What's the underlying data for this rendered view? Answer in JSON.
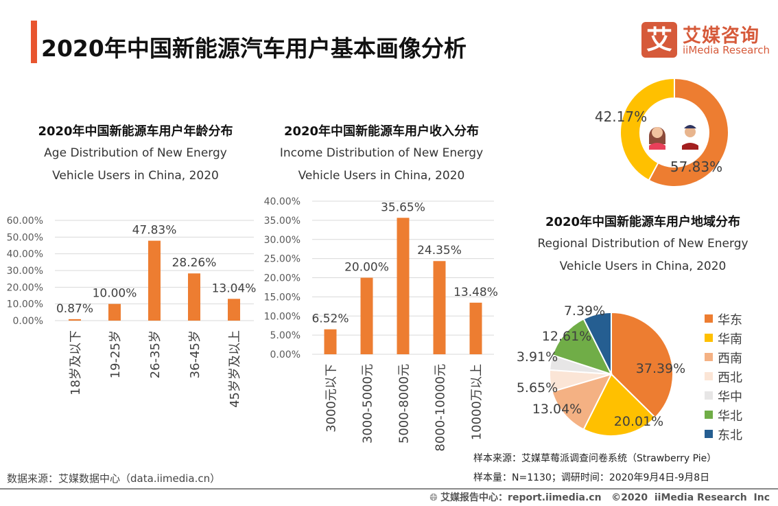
{
  "header": {
    "title": "2020年中国新能源汽车用户基本画像分析"
  },
  "logo": {
    "icon_char": "艾",
    "cn": "艾媒咨询",
    "en": "iiMedia Research"
  },
  "colors": {
    "accent": "#e8552f",
    "bar": "#ed7d31",
    "grid": "#d9d9d9"
  },
  "chart_data": [
    {
      "type": "bar",
      "title": "2020年中国新能源车用户年龄分布",
      "subtitle_lines": [
        "Age Distribution of New Energy",
        "Vehicle Users in China, 2020"
      ],
      "categories": [
        "18岁及以下",
        "19-25岁",
        "26-35岁",
        "36-45岁",
        "45岁岁及以上"
      ],
      "values": [
        0.87,
        10.0,
        47.83,
        28.26,
        13.04
      ],
      "data_labels": [
        "0.87%",
        "10.00%",
        "47.83%",
        "28.26%",
        "13.04%"
      ],
      "yticks": [
        "0.00%",
        "10.00%",
        "20.00%",
        "30.00%",
        "40.00%",
        "50.00%",
        "60.00%"
      ],
      "ylim": [
        0,
        60
      ],
      "grid": true,
      "color": "#ed7d31"
    },
    {
      "type": "bar",
      "title": "2020年中国新能源车用户收入分布",
      "subtitle_lines": [
        "Income Distribution of New Energy",
        "Vehicle Users in China, 2020"
      ],
      "categories": [
        "3000元以下",
        "3000-5000元",
        "5000-8000元",
        "8000-10000元",
        "10000万以上"
      ],
      "values": [
        6.52,
        20.0,
        35.65,
        24.35,
        13.48
      ],
      "data_labels": [
        "6.52%",
        "20.00%",
        "35.65%",
        "24.35%",
        "13.48%"
      ],
      "yticks": [
        "0.00%",
        "5.00%",
        "10.00%",
        "15.00%",
        "20.00%",
        "25.00%",
        "30.00%",
        "35.00%",
        "40.00%"
      ],
      "ylim": [
        0,
        40
      ],
      "grid": true,
      "color": "#ed7d31"
    },
    {
      "type": "pie",
      "variant": "donut",
      "categories": [
        "male",
        "female"
      ],
      "values": [
        57.83,
        42.17
      ],
      "data_labels": [
        "57.83%",
        "42.17%"
      ],
      "colors": [
        "#ed7d31",
        "#ffc000"
      ],
      "icons": [
        "man-avatar-icon",
        "woman-avatar-icon"
      ]
    },
    {
      "type": "pie",
      "title": "2020年中国新能源车用户地域分布",
      "subtitle_lines": [
        "Regional Distribution of New Energy",
        "Vehicle Users in China, 2020"
      ],
      "categories": [
        "华东",
        "华南",
        "西南",
        "西北",
        "华中",
        "华北",
        "东北"
      ],
      "values": [
        37.39,
        20.01,
        13.04,
        5.65,
        3.91,
        12.61,
        7.39
      ],
      "data_labels": [
        "37.39%",
        "20.01%",
        "13.04%",
        "5.65%",
        "3.91%",
        "12.61%",
        "7.39%"
      ],
      "colors": [
        "#ed7d31",
        "#ffc000",
        "#f4b183",
        "#fbe5d6",
        "#e7e6e6",
        "#70ad47",
        "#255e91"
      ],
      "legend": "right"
    }
  ],
  "notes": {
    "data_source": "数据来源：艾媒数据中心（data.iimedia.cn）",
    "sample_source": "样本来源：艾媒草莓派调查问卷系统（Strawberry Pie）",
    "sample_size": "样本量：N=1130；调研时间：2020年9月4日-9月8日"
  },
  "footer": {
    "text": "艾媒报告中心：report.iimedia.cn   ©2020  iiMedia Research  Inc",
    "icon": "globe-icon"
  }
}
